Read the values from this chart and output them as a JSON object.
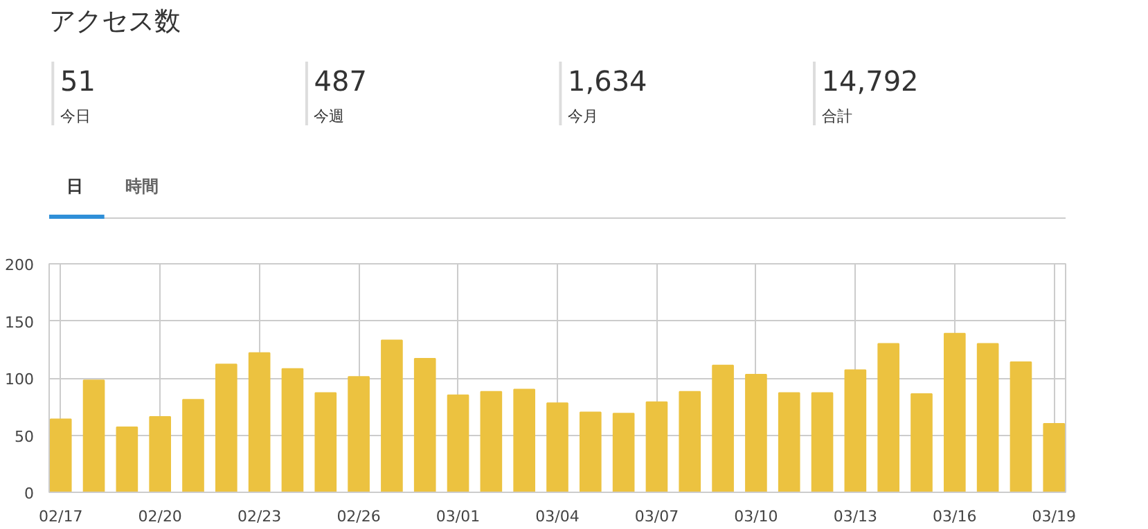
{
  "chart_data": [
    {
      "type": "other",
      "title": "アクセス数",
      "annotations": [
        "51",
        "今日",
        "487",
        "今週",
        "1,634",
        "今月",
        "14,792",
        "合計",
        "日",
        "時間"
      ]
    },
    {
      "type": "bar",
      "categories": [
        "02/17",
        null,
        null,
        "02/20",
        null,
        null,
        "02/23",
        null,
        null,
        "02/26",
        null,
        null,
        "03/01",
        null,
        null,
        "03/04",
        null,
        null,
        "03/07",
        null,
        null,
        "03/10",
        null,
        null,
        "03/13",
        null,
        null,
        "03/16",
        null,
        null,
        "03/19"
      ],
      "values": [
        64,
        98,
        57,
        66,
        81,
        112,
        122,
        108,
        87,
        101,
        133,
        117,
        85,
        88,
        90,
        78,
        70,
        69,
        79,
        88,
        111,
        103,
        87,
        87,
        107,
        130,
        86,
        139,
        130,
        114,
        60
      ],
      "color": "#ecc240",
      "ylim": [
        0,
        200
      ],
      "yticks": [
        0,
        50,
        100,
        150,
        200
      ],
      "grid": true
    }
  ]
}
